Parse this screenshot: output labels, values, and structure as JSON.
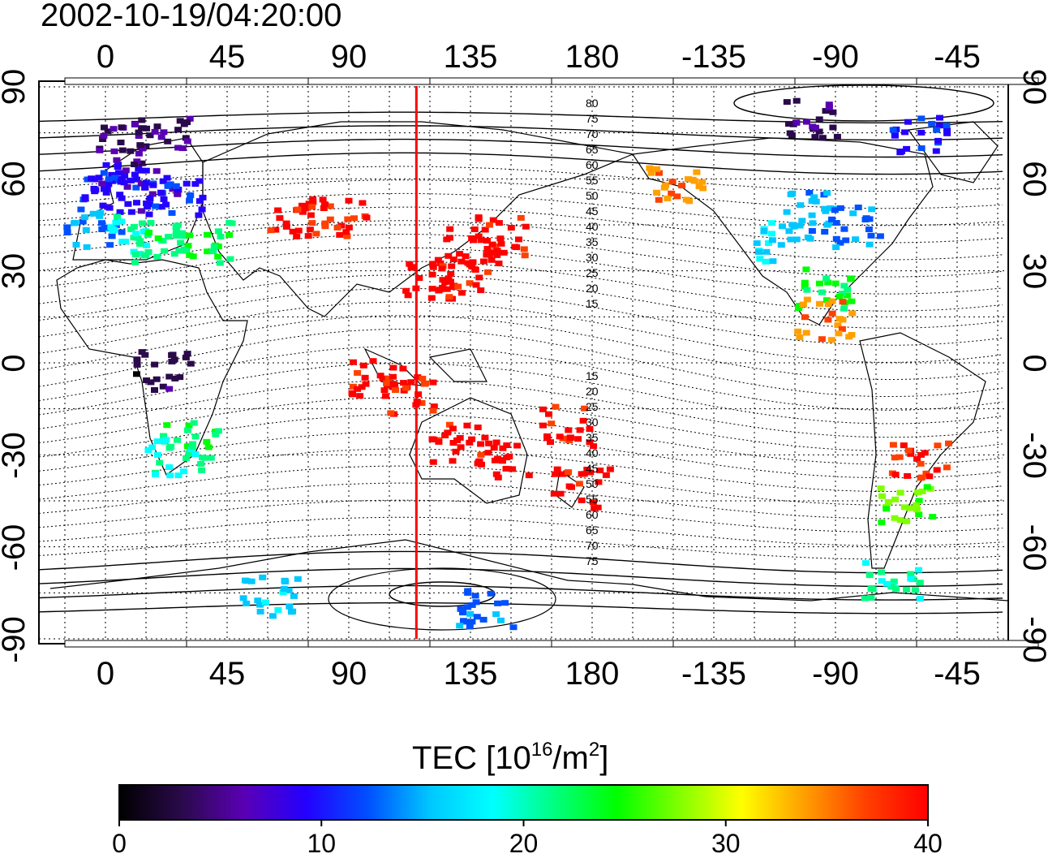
{
  "title": "2002-10-19/04:20:00",
  "x_ticks": [
    "0",
    "45",
    "90",
    "135",
    "180",
    "-135",
    "-90",
    "-45"
  ],
  "y_ticks": [
    "90",
    "60",
    "30",
    "0",
    "-30",
    "-60",
    "-90"
  ],
  "colorbar": {
    "label_main": "TEC  [10",
    "label_exp": "16",
    "label_mid": "/m",
    "label_exp2": "2",
    "label_end": "]",
    "ticks": [
      "0",
      "10",
      "20",
      "30",
      "40"
    ],
    "stops": [
      "#000000",
      "#2a0a4a",
      "#5a00b4",
      "#2400ff",
      "#0050ff",
      "#00c8ff",
      "#00ffff",
      "#00ff80",
      "#00ff00",
      "#80ff00",
      "#ffff00",
      "#ffa000",
      "#ff4000",
      "#ff0000"
    ]
  },
  "meridian_marker": {
    "longitude": 115,
    "color": "#ff0000"
  },
  "contour_labels_north": [
    "80",
    "75",
    "70",
    "65",
    "60",
    "55",
    "50",
    "45",
    "40",
    "35",
    "30",
    "25",
    "20",
    "15"
  ],
  "contour_labels_south": [
    "15",
    "20",
    "25",
    "30",
    "35",
    "40",
    "45",
    "50",
    "55",
    "60",
    "65",
    "70",
    "75"
  ],
  "tec_patches": [
    {
      "lon": 0,
      "lat": 60,
      "tec": 10
    },
    {
      "lon": 5,
      "lat": 55,
      "tec": 9
    },
    {
      "lon": 15,
      "lat": 58,
      "tec": 8
    },
    {
      "lon": 25,
      "lat": 55,
      "tec": 11
    },
    {
      "lon": -5,
      "lat": 45,
      "tec": 14
    },
    {
      "lon": 10,
      "lat": 42,
      "tec": 19
    },
    {
      "lon": 20,
      "lat": 40,
      "tec": 22
    },
    {
      "lon": 35,
      "lat": 40,
      "tec": 23
    },
    {
      "lon": 5,
      "lat": 72,
      "tec": 5
    },
    {
      "lon": 20,
      "lat": 75,
      "tec": 4
    },
    {
      "lon": 70,
      "lat": 48,
      "tec": 40
    },
    {
      "lon": 85,
      "lat": 48,
      "tec": 39
    },
    {
      "lon": 135,
      "lat": 38,
      "tec": 40
    },
    {
      "lon": 145,
      "lat": 42,
      "tec": 40
    },
    {
      "lon": 130,
      "lat": 30,
      "tec": 40
    },
    {
      "lon": 120,
      "lat": 28,
      "tec": 40
    },
    {
      "lon": 100,
      "lat": -5,
      "tec": 40
    },
    {
      "lon": 110,
      "lat": -10,
      "tec": 39
    },
    {
      "lon": 130,
      "lat": -25,
      "tec": 40
    },
    {
      "lon": 145,
      "lat": -30,
      "tec": 40
    },
    {
      "lon": 175,
      "lat": -40,
      "tec": 40
    },
    {
      "lon": 170,
      "lat": -20,
      "tec": 39
    },
    {
      "lon": 30,
      "lat": -25,
      "tec": 22
    },
    {
      "lon": 25,
      "lat": -30,
      "tec": 19
    },
    {
      "lon": 20,
      "lat": -2,
      "tec": 3
    },
    {
      "lon": -100,
      "lat": 50,
      "tec": 15
    },
    {
      "lon": -110,
      "lat": 40,
      "tec": 17
    },
    {
      "lon": -85,
      "lat": 45,
      "tec": 13
    },
    {
      "lon": -95,
      "lat": 25,
      "tec": 24
    },
    {
      "lon": -95,
      "lat": 15,
      "tec": 35
    },
    {
      "lon": -60,
      "lat": -30,
      "tec": 38
    },
    {
      "lon": -65,
      "lat": -45,
      "tec": 27
    },
    {
      "lon": -70,
      "lat": -70,
      "tec": 21
    },
    {
      "lon": -150,
      "lat": 60,
      "tec": 35
    },
    {
      "lon": -100,
      "lat": 80,
      "tec": 4
    },
    {
      "lon": -60,
      "lat": 75,
      "tec": 10
    },
    {
      "lon": 140,
      "lat": -80,
      "tec": 13
    },
    {
      "lon": 60,
      "lat": -75,
      "tec": 16
    }
  ]
}
